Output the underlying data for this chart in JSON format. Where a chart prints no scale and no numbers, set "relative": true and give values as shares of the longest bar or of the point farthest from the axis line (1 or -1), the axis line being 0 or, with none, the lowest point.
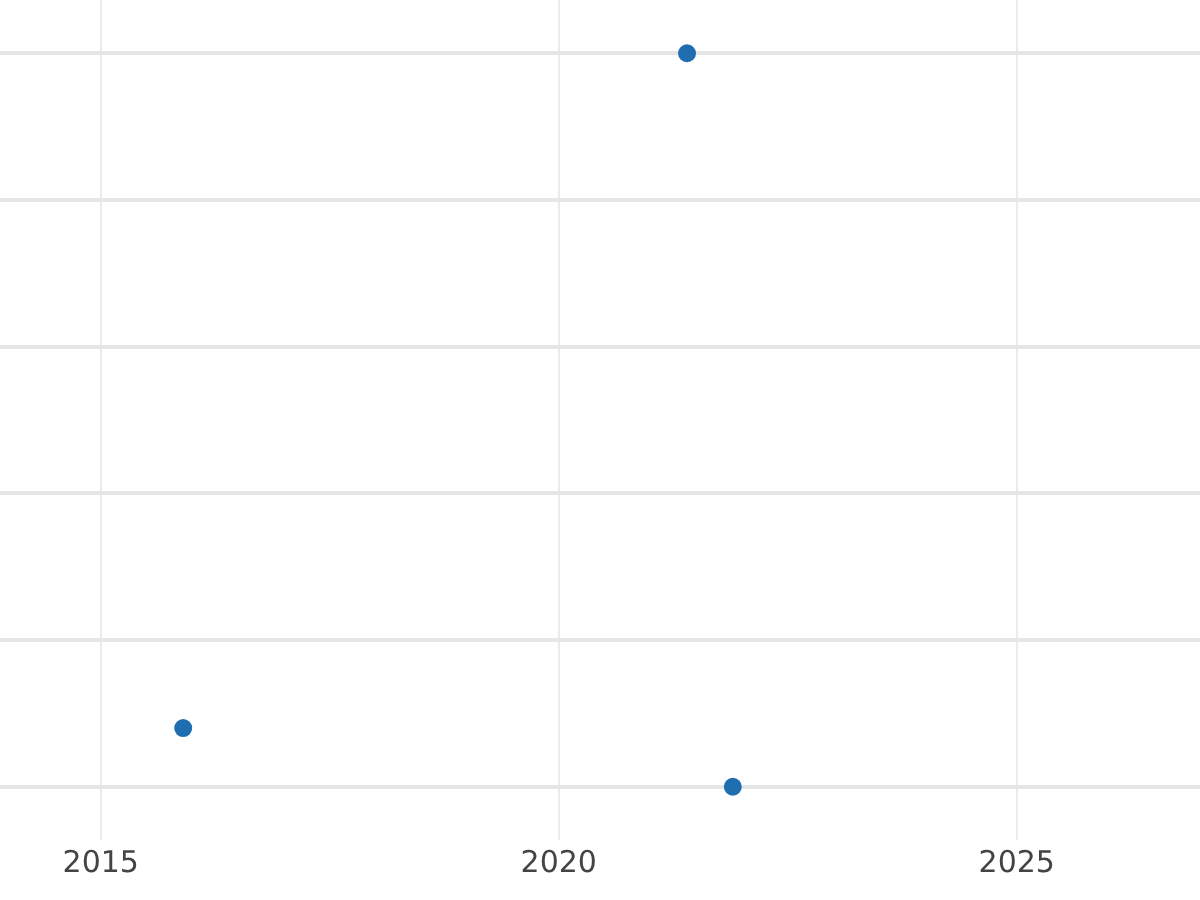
{
  "chart_data": {
    "type": "scatter",
    "relative": true,
    "x": [
      2015.9,
      2021.4,
      2021.9
    ],
    "values": [
      0.08,
      1,
      0
    ],
    "color": "#1f6fb0",
    "xlim": [
      2013.9,
      2027.0
    ],
    "xticks": [
      2015,
      2020,
      2025
    ],
    "tick_labels": "x",
    "grid": true,
    "marker": "circle"
  }
}
